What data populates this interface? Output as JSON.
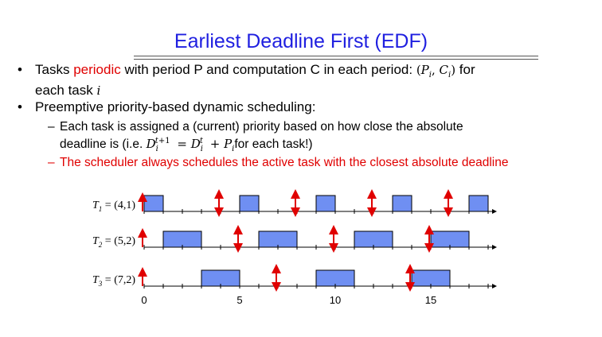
{
  "title": "Earliest Deadline First (EDF)",
  "bullets": {
    "b1": {
      "pre": "Tasks ",
      "hl": "periodic",
      "post": " with period P and computation C in each period: ",
      "formula": "(Pi, Ci)",
      "post2": " for",
      "line2": "each task ",
      "var": "i"
    },
    "b2": {
      "text": "Preemptive priority-based dynamic scheduling:"
    },
    "sub1": {
      "line1": "Each task is assigned a (current) priority based on how close the absolute",
      "line2_pre": "deadline is (i.e. ",
      "line2_post": "for each task!)"
    },
    "sub2": {
      "text": "The scheduler always schedules the active task with the closest absolute deadline"
    }
  },
  "colors": {
    "title": "#1f1fe0",
    "highlight": "#e00000",
    "block": "#6f8ff2",
    "arrow": "#e00000"
  },
  "chart_data": {
    "type": "gantt",
    "x_ticks": [
      0,
      5,
      10,
      15
    ],
    "tasks": [
      {
        "label": "T1 = (4,1)",
        "name": "T",
        "sub": "1",
        "params": "= (4,1)",
        "blocks": [
          [
            0,
            1
          ],
          [
            5,
            6
          ],
          [
            9,
            10
          ],
          [
            13,
            14
          ],
          [
            17,
            18
          ]
        ],
        "deadlines": [
          0,
          4,
          8,
          12,
          16
        ]
      },
      {
        "label": "T2 = (5,2)",
        "name": "T",
        "sub": "2",
        "params": "= (5,2)",
        "blocks": [
          [
            1,
            3
          ],
          [
            6,
            8
          ],
          [
            11,
            13
          ],
          [
            15,
            17
          ]
        ],
        "deadlines": [
          0,
          5,
          10,
          15
        ]
      },
      {
        "label": "T3 = (7,2)",
        "name": "T",
        "sub": "3",
        "params": "= (7,2)",
        "blocks": [
          [
            3,
            5
          ],
          [
            9,
            11
          ],
          [
            14,
            16
          ]
        ],
        "deadlines": [
          0,
          7,
          14
        ]
      }
    ]
  }
}
